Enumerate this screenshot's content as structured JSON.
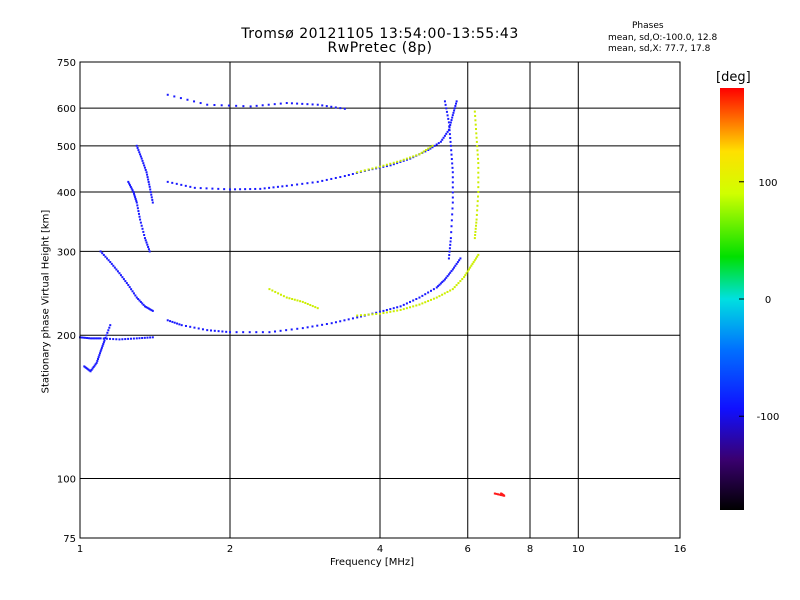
{
  "chart_data": {
    "type": "scatter",
    "title": "Tromsø 20121105 13:54:00-13:55:43",
    "subtitle": "RwPretec (8p)",
    "xlabel": "Frequency [MHz]",
    "ylabel": "Stationary phase Virtual Height [km]",
    "x_scale": "log",
    "y_scale": "log",
    "xlim": [
      1,
      16
    ],
    "ylim": [
      75,
      750
    ],
    "x_ticks": [
      1,
      2,
      4,
      6,
      8,
      10,
      16
    ],
    "x_tick_labels": [
      "1",
      "2",
      "4",
      "6",
      "8",
      "10",
      "16"
    ],
    "y_ticks": [
      75,
      100,
      200,
      300,
      400,
      500,
      600,
      750
    ],
    "y_tick_labels": [
      "75",
      "100",
      "200",
      "300",
      "400",
      "500",
      "600",
      "750"
    ],
    "grid": true,
    "phases_info": {
      "heading": "Phases",
      "line1": "mean, sd,O:-100.0, 12.8",
      "line2": "mean, sd,X:  77.7, 17.8"
    },
    "colorbar": {
      "label": "[deg]",
      "range": [
        -180,
        180
      ],
      "ticks": [
        100,
        0,
        -100
      ],
      "tick_labels": [
        "100",
        "0",
        "-100"
      ]
    },
    "traces": [
      {
        "name_shown": false,
        "phase": -100,
        "points": [
          [
            1.0,
            198
          ],
          [
            1.05,
            197
          ],
          [
            1.1,
            197
          ],
          [
            1.2,
            196
          ],
          [
            1.3,
            197
          ],
          [
            1.4,
            198
          ]
        ]
      },
      {
        "phase": -100,
        "points": [
          [
            1.02,
            172
          ],
          [
            1.05,
            168
          ],
          [
            1.08,
            175
          ],
          [
            1.1,
            185
          ],
          [
            1.12,
            195
          ],
          [
            1.15,
            210
          ]
        ]
      },
      {
        "phase": -100,
        "points": [
          [
            1.1,
            300
          ],
          [
            1.15,
            285
          ],
          [
            1.2,
            270
          ],
          [
            1.25,
            255
          ],
          [
            1.3,
            240
          ],
          [
            1.35,
            230
          ],
          [
            1.4,
            225
          ]
        ]
      },
      {
        "phase": -100,
        "points": [
          [
            1.25,
            420
          ],
          [
            1.28,
            400
          ],
          [
            1.3,
            380
          ],
          [
            1.32,
            350
          ],
          [
            1.35,
            320
          ],
          [
            1.38,
            300
          ]
        ]
      },
      {
        "phase": -100,
        "points": [
          [
            1.3,
            500
          ],
          [
            1.33,
            470
          ],
          [
            1.36,
            440
          ],
          [
            1.38,
            410
          ],
          [
            1.4,
            380
          ]
        ]
      },
      {
        "phase": -100,
        "points": [
          [
            1.5,
            215
          ],
          [
            1.6,
            210
          ],
          [
            1.8,
            205
          ],
          [
            2.0,
            203
          ],
          [
            2.4,
            203
          ],
          [
            2.8,
            207
          ],
          [
            3.2,
            212
          ],
          [
            3.6,
            218
          ],
          [
            4.0,
            224
          ],
          [
            4.4,
            230
          ],
          [
            4.8,
            240
          ],
          [
            5.2,
            252
          ],
          [
            5.4,
            262
          ],
          [
            5.6,
            275
          ],
          [
            5.8,
            290
          ]
        ]
      },
      {
        "phase": 100,
        "points": [
          [
            3.6,
            220
          ],
          [
            4.0,
            222
          ],
          [
            4.4,
            226
          ],
          [
            4.8,
            232
          ],
          [
            5.2,
            240
          ],
          [
            5.6,
            250
          ],
          [
            5.9,
            265
          ],
          [
            6.1,
            280
          ],
          [
            6.3,
            295
          ]
        ]
      },
      {
        "phase": -100,
        "points": [
          [
            1.5,
            420
          ],
          [
            1.7,
            408
          ],
          [
            2.0,
            405
          ],
          [
            2.3,
            406
          ],
          [
            2.6,
            412
          ],
          [
            3.0,
            420
          ],
          [
            3.4,
            432
          ],
          [
            3.8,
            445
          ],
          [
            4.2,
            455
          ],
          [
            4.6,
            470
          ],
          [
            5.0,
            490
          ],
          [
            5.3,
            510
          ],
          [
            5.5,
            540
          ],
          [
            5.6,
            580
          ],
          [
            5.7,
            620
          ]
        ]
      },
      {
        "phase": 100,
        "points": [
          [
            3.6,
            440
          ],
          [
            4.0,
            452
          ],
          [
            4.4,
            465
          ],
          [
            4.8,
            480
          ],
          [
            5.1,
            500
          ]
        ]
      },
      {
        "phase": -100,
        "points": [
          [
            1.5,
            640
          ],
          [
            1.8,
            610
          ],
          [
            2.2,
            605
          ],
          [
            2.6,
            615
          ],
          [
            3.0,
            610
          ],
          [
            3.4,
            598
          ]
        ]
      },
      {
        "phase": -100,
        "points": [
          [
            5.4,
            620
          ],
          [
            5.5,
            560
          ],
          [
            5.55,
            500
          ],
          [
            5.6,
            440
          ],
          [
            5.6,
            380
          ],
          [
            5.55,
            320
          ],
          [
            5.5,
            290
          ]
        ]
      },
      {
        "phase": 100,
        "points": [
          [
            6.2,
            590
          ],
          [
            6.25,
            520
          ],
          [
            6.3,
            460
          ],
          [
            6.3,
            400
          ],
          [
            6.25,
            350
          ],
          [
            6.2,
            320
          ]
        ]
      },
      {
        "phase": 100,
        "points": [
          [
            2.4,
            250
          ],
          [
            2.6,
            240
          ],
          [
            2.8,
            235
          ],
          [
            3.0,
            228
          ]
        ]
      },
      {
        "phase": 150,
        "points": [
          [
            7.0,
            93
          ],
          [
            7.1,
            92
          ],
          [
            6.8,
            93
          ]
        ]
      }
    ]
  }
}
